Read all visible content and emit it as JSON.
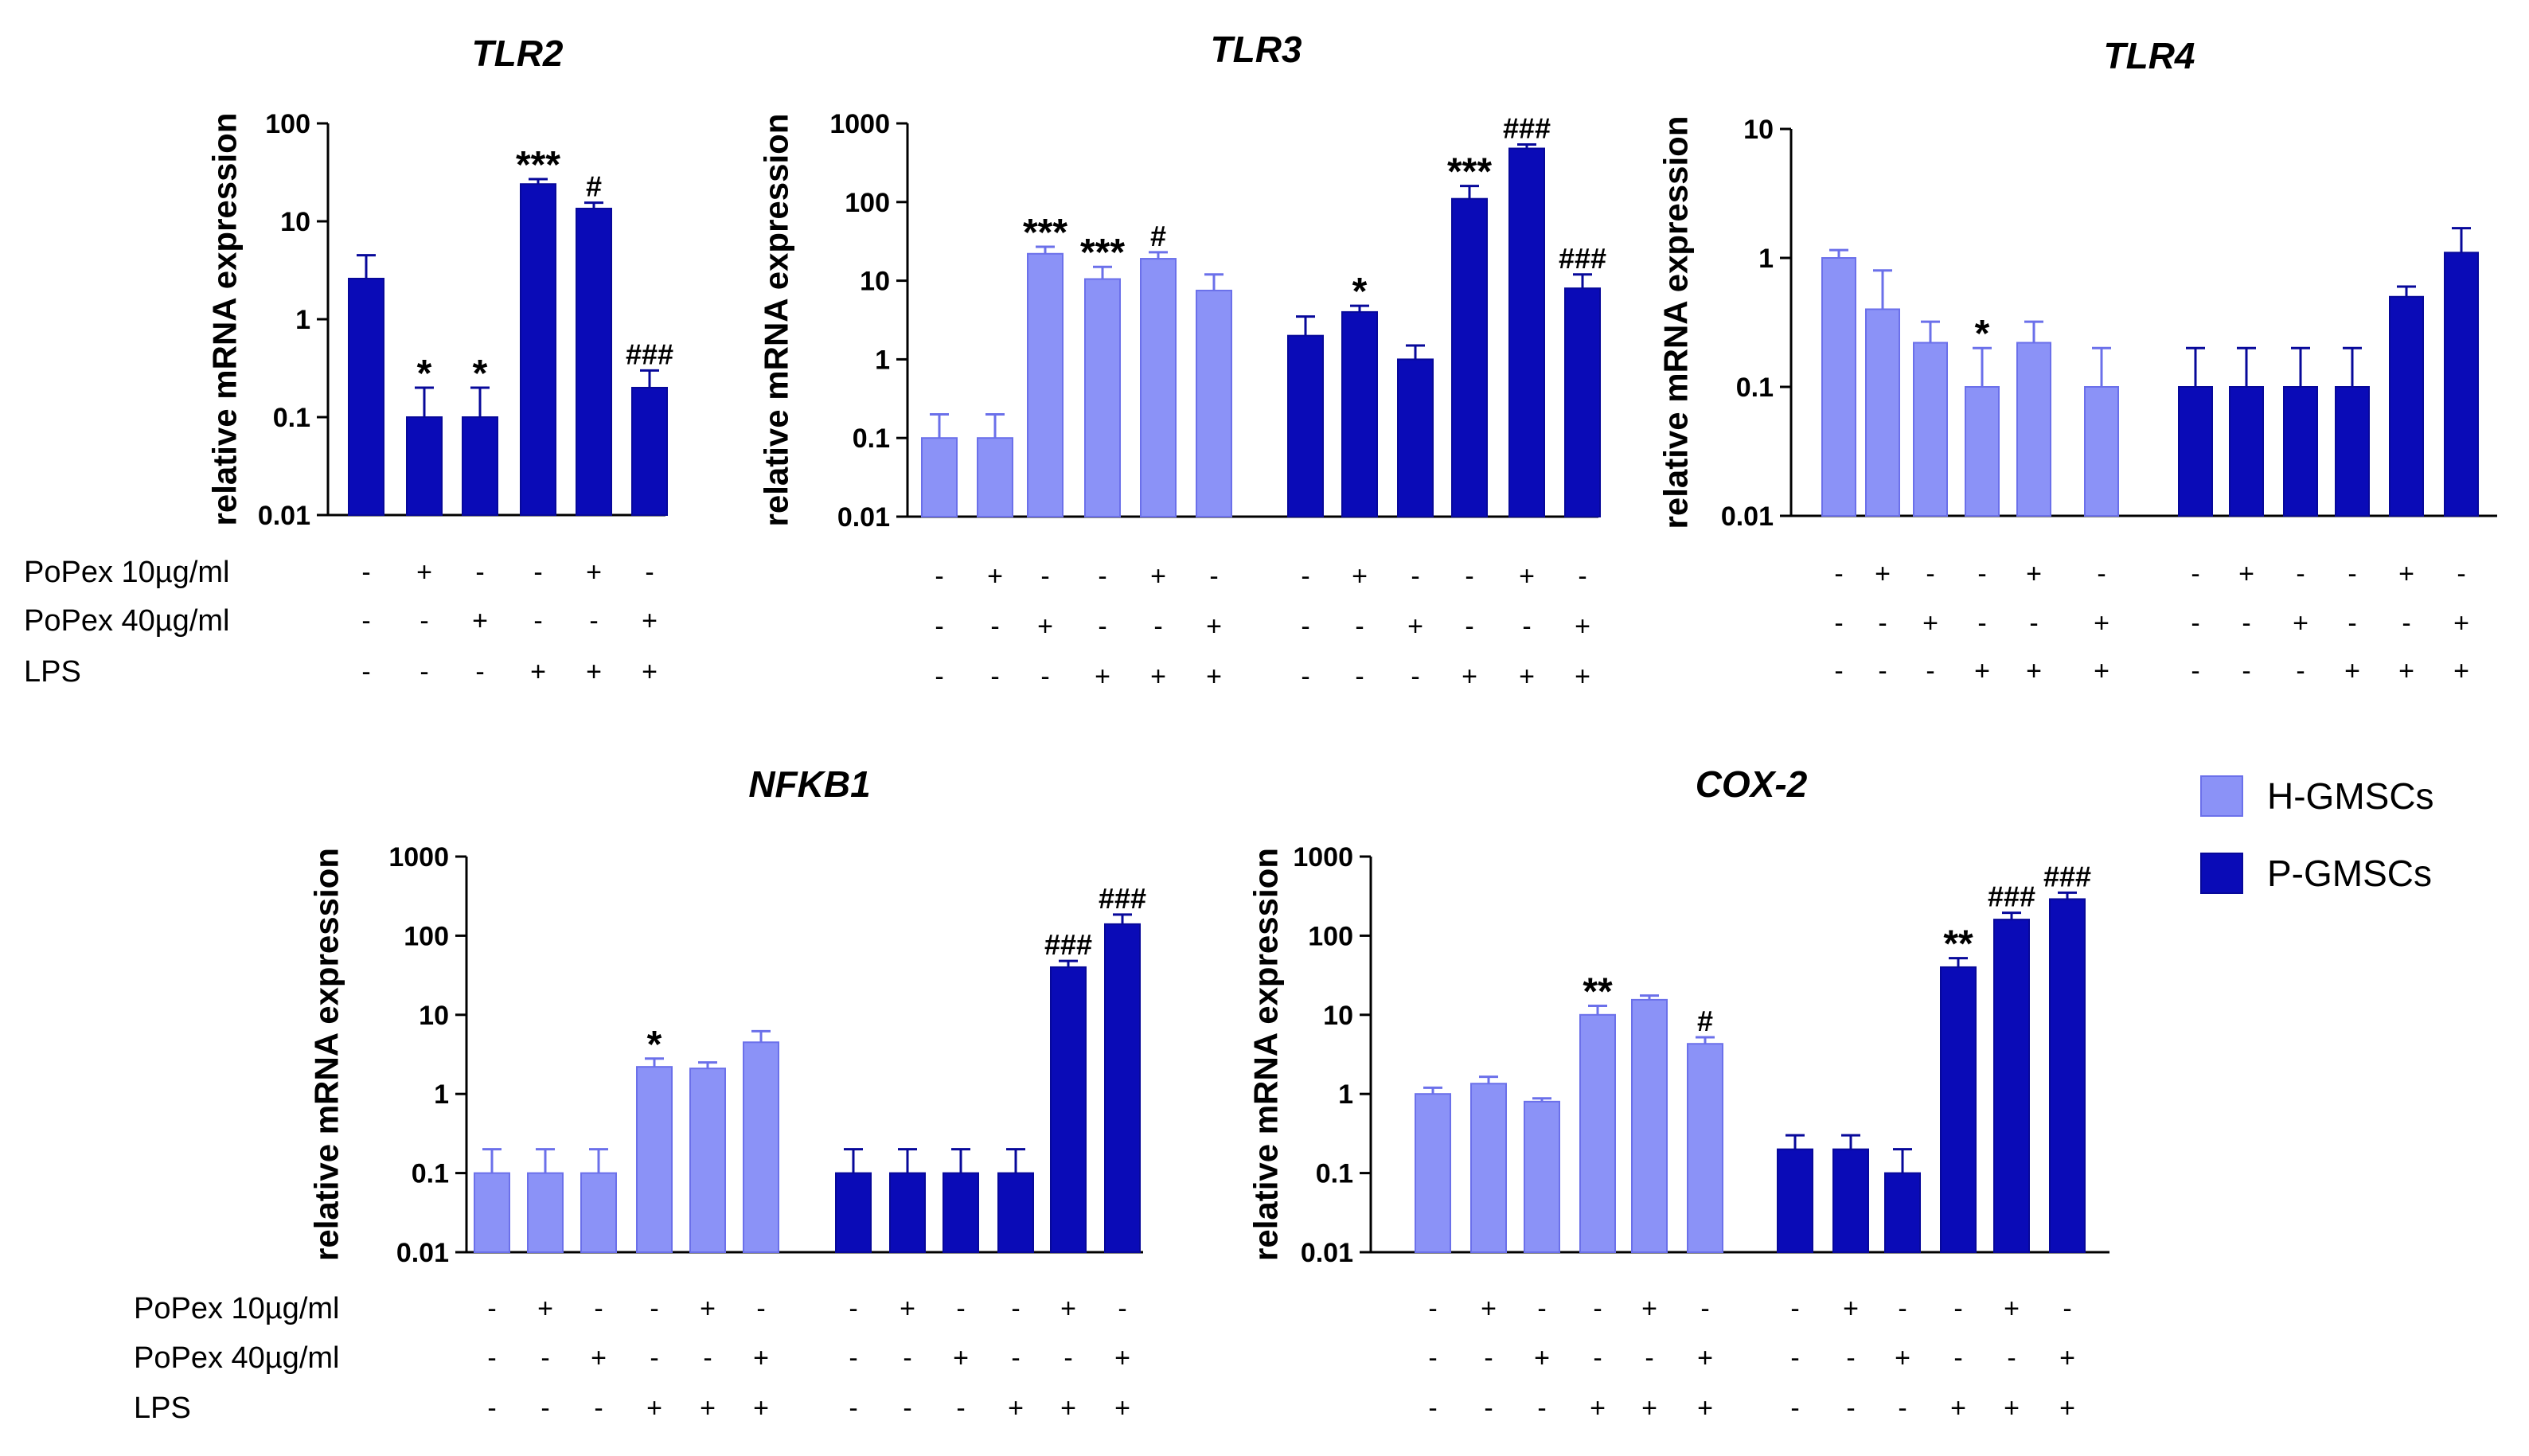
{
  "colors": {
    "h": "#8b92f7",
    "p": "#0a0bb7",
    "errbar_h": "#7b7ff2",
    "errbar_p": "#0a0bb7"
  },
  "legend": {
    "items": [
      {
        "label": "H-GMSCs",
        "color": "#8b92f7"
      },
      {
        "label": "P-GMSCs",
        "color": "#0a0bb7"
      }
    ]
  },
  "condition_labels": [
    "PoPex 10µg/ml",
    "PoPex 40µg/ml",
    "LPS"
  ],
  "chart_data": [
    {
      "id": "tlr2",
      "type": "bar",
      "title": "TLR2",
      "ylabel": "relative mRNA expression",
      "yscale": "log",
      "ylim": [
        0.01,
        100
      ],
      "yticks": [
        "0.01",
        "0.1",
        "1",
        "10",
        "100"
      ],
      "groups": [
        {
          "group": "P-GMSCs",
          "color": "p",
          "values": [
            2.6,
            0.1,
            0.1,
            24,
            13.5,
            0.2
          ],
          "errors": [
            4.5,
            0.2,
            0.2,
            27,
            15.5,
            0.3
          ],
          "signs": [
            [
              "-",
              "+",
              "-",
              "-",
              "+",
              "-"
            ],
            [
              "-",
              "-",
              "+",
              "-",
              "-",
              "+"
            ],
            [
              "-",
              "-",
              "-",
              "+",
              "+",
              "+"
            ]
          ],
          "annotations": [
            "",
            "*",
            "*",
            "***",
            "#",
            "###"
          ]
        }
      ],
      "show_condition_labels": true
    },
    {
      "id": "tlr3",
      "type": "bar",
      "title": "TLR3",
      "ylabel": "relative mRNA expression",
      "yscale": "log",
      "ylim": [
        0.01,
        1000
      ],
      "yticks": [
        "0.01",
        "0.1",
        "1",
        "10",
        "100",
        "1000"
      ],
      "groups": [
        {
          "group": "H-GMSCs",
          "color": "h",
          "values": [
            0.1,
            0.1,
            22,
            10.5,
            19,
            7.5
          ],
          "errors": [
            0.2,
            0.2,
            27,
            15,
            23,
            12
          ],
          "signs": [
            [
              "-",
              "+",
              "-",
              "-",
              "+",
              "-"
            ],
            [
              "-",
              "-",
              "+",
              "-",
              "-",
              "+"
            ],
            [
              "-",
              "-",
              "-",
              "+",
              "+",
              "+"
            ]
          ],
          "annotations": [
            "",
            "",
            "***",
            "***",
            "#",
            ""
          ]
        },
        {
          "group": "P-GMSCs",
          "color": "p",
          "values": [
            2,
            4,
            1,
            110,
            480,
            8
          ],
          "errors": [
            3.5,
            4.8,
            1.5,
            160,
            540,
            12
          ],
          "signs": [
            [
              "-",
              "+",
              "-",
              "-",
              "+",
              "-"
            ],
            [
              "-",
              "-",
              "+",
              "-",
              "-",
              "+"
            ],
            [
              "-",
              "-",
              "-",
              "+",
              "+",
              "+"
            ]
          ],
          "annotations": [
            "",
            "*",
            "",
            "***",
            "###",
            "###"
          ]
        }
      ],
      "show_condition_labels": false
    },
    {
      "id": "tlr4",
      "type": "bar",
      "title": "TLR4",
      "ylabel": "relative mRNA expression",
      "yscale": "log",
      "ylim": [
        0.01,
        10
      ],
      "yticks": [
        "0.01",
        "0.1",
        "1",
        "10"
      ],
      "groups": [
        {
          "group": "H-GMSCs",
          "color": "h",
          "values": [
            1,
            0.4,
            0.22,
            0.1,
            0.22,
            0.1
          ],
          "errors": [
            1.15,
            0.8,
            0.32,
            0.2,
            0.32,
            0.2
          ],
          "signs": [
            [
              "-",
              "+",
              "-",
              "-",
              "+",
              "-"
            ],
            [
              "-",
              "-",
              "+",
              "-",
              "-",
              "+"
            ],
            [
              "-",
              "-",
              "-",
              "+",
              "+",
              "+"
            ]
          ],
          "annotations": [
            "",
            "",
            "",
            "*",
            "",
            ""
          ]
        },
        {
          "group": "P-GMSCs",
          "color": "p",
          "values": [
            0.1,
            0.1,
            0.1,
            0.1,
            0.5,
            1.1
          ],
          "errors": [
            0.2,
            0.2,
            0.2,
            0.2,
            0.6,
            1.7
          ],
          "signs": [
            [
              "-",
              "+",
              "-",
              "-",
              "+",
              "-"
            ],
            [
              "-",
              "-",
              "+",
              "-",
              "-",
              "+"
            ],
            [
              "-",
              "-",
              "-",
              "+",
              "+",
              "+"
            ]
          ],
          "annotations": [
            "",
            "",
            "",
            "",
            "",
            ""
          ]
        }
      ],
      "show_condition_labels": false
    },
    {
      "id": "nfkb1",
      "type": "bar",
      "title": "NFKB1",
      "ylabel": "relative mRNA expression",
      "yscale": "log",
      "ylim": [
        0.01,
        1000
      ],
      "yticks": [
        "0.01",
        "0.1",
        "1",
        "10",
        "100",
        "1000"
      ],
      "groups": [
        {
          "group": "H-GMSCs",
          "color": "h",
          "values": [
            0.1,
            0.1,
            0.1,
            2.2,
            2.1,
            4.5
          ],
          "errors": [
            0.2,
            0.2,
            0.2,
            2.8,
            2.5,
            6.2
          ],
          "signs": [
            [
              "-",
              "+",
              "-",
              "-",
              "+",
              "-"
            ],
            [
              "-",
              "-",
              "+",
              "-",
              "-",
              "+"
            ],
            [
              "-",
              "-",
              "-",
              "+",
              "+",
              "+"
            ]
          ],
          "annotations": [
            "",
            "",
            "",
            "*",
            "",
            ""
          ]
        },
        {
          "group": "P-GMSCs",
          "color": "p",
          "values": [
            0.1,
            0.1,
            0.1,
            0.1,
            40,
            140
          ],
          "errors": [
            0.2,
            0.2,
            0.2,
            0.2,
            48,
            185
          ],
          "signs": [
            [
              "-",
              "+",
              "-",
              "-",
              "+",
              "-"
            ],
            [
              "-",
              "-",
              "+",
              "-",
              "-",
              "+"
            ],
            [
              "-",
              "-",
              "-",
              "+",
              "+",
              "+"
            ]
          ],
          "annotations": [
            "",
            "",
            "",
            "",
            "###",
            "###"
          ]
        }
      ],
      "show_condition_labels": true
    },
    {
      "id": "cox2",
      "type": "bar",
      "title": "COX-2",
      "ylabel": "relative mRNA expression",
      "yscale": "log",
      "ylim": [
        0.01,
        1000
      ],
      "yticks": [
        "0.01",
        "0.1",
        "1",
        "10",
        "100",
        "1000"
      ],
      "groups": [
        {
          "group": "H-GMSCs",
          "color": "h",
          "values": [
            1,
            1.35,
            0.8,
            10,
            15.5,
            4.3
          ],
          "errors": [
            1.2,
            1.65,
            0.88,
            13,
            17.5,
            5.2
          ],
          "signs": [
            [
              "-",
              "+",
              "-",
              "-",
              "+",
              "-"
            ],
            [
              "-",
              "-",
              "+",
              "-",
              "-",
              "+"
            ],
            [
              "-",
              "-",
              "-",
              "+",
              "+",
              "+"
            ]
          ],
          "annotations": [
            "",
            "",
            "",
            "**",
            "",
            "#"
          ]
        },
        {
          "group": "P-GMSCs",
          "color": "p",
          "values": [
            0.2,
            0.2,
            0.1,
            40,
            160,
            290
          ],
          "errors": [
            0.3,
            0.3,
            0.2,
            52,
            195,
            350
          ],
          "signs": [
            [
              "-",
              "+",
              "-",
              "-",
              "+",
              "-"
            ],
            [
              "-",
              "-",
              "+",
              "-",
              "-",
              "+"
            ],
            [
              "-",
              "-",
              "-",
              "+",
              "+",
              "+"
            ]
          ],
          "annotations": [
            "",
            "",
            "",
            "**",
            "###",
            "###"
          ]
        }
      ],
      "show_condition_labels": false
    }
  ]
}
